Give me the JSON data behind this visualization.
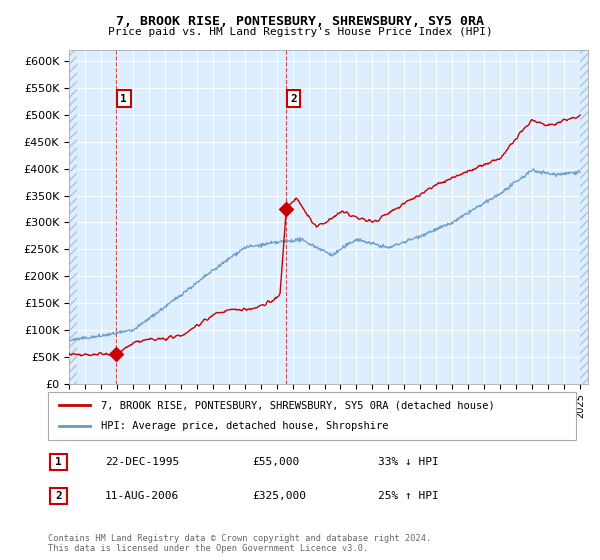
{
  "title": "7, BROOK RISE, PONTESBURY, SHREWSBURY, SY5 0RA",
  "subtitle": "Price paid vs. HM Land Registry's House Price Index (HPI)",
  "xlim_start": 1993,
  "xlim_end": 2025.5,
  "ylim_min": 0,
  "ylim_max": 620000,
  "yticks": [
    0,
    50000,
    100000,
    150000,
    200000,
    250000,
    300000,
    350000,
    400000,
    450000,
    500000,
    550000,
    600000
  ],
  "ytick_labels": [
    "£0",
    "£50K",
    "£100K",
    "£150K",
    "£200K",
    "£250K",
    "£300K",
    "£350K",
    "£400K",
    "£450K",
    "£500K",
    "£550K",
    "£600K"
  ],
  "xticks": [
    1993,
    1994,
    1995,
    1996,
    1997,
    1998,
    1999,
    2000,
    2001,
    2002,
    2003,
    2004,
    2005,
    2006,
    2007,
    2008,
    2009,
    2010,
    2011,
    2012,
    2013,
    2014,
    2015,
    2016,
    2017,
    2018,
    2019,
    2020,
    2021,
    2022,
    2023,
    2024,
    2025
  ],
  "sale1_x": 1995.97,
  "sale1_y": 55000,
  "sale1_label": "1",
  "sale1_date": "22-DEC-1995",
  "sale1_price": "£55,000",
  "sale1_hpi": "33% ↓ HPI",
  "sale2_x": 2006.61,
  "sale2_y": 325000,
  "sale2_label": "2",
  "sale2_date": "11-AUG-2006",
  "sale2_price": "£325,000",
  "sale2_hpi": "25% ↑ HPI",
  "sale_color": "#cc0000",
  "hpi_color": "#6699cc",
  "legend_label1": "7, BROOK RISE, PONTESBURY, SHREWSBURY, SY5 0RA (detached house)",
  "legend_label2": "HPI: Average price, detached house, Shropshire",
  "footer": "Contains HM Land Registry data © Crown copyright and database right 2024.\nThis data is licensed under the Open Government Licence v3.0.",
  "bg_color": "#ddeeff",
  "hatch_left_end": 1993.5,
  "hatch_right_start": 2025.0
}
